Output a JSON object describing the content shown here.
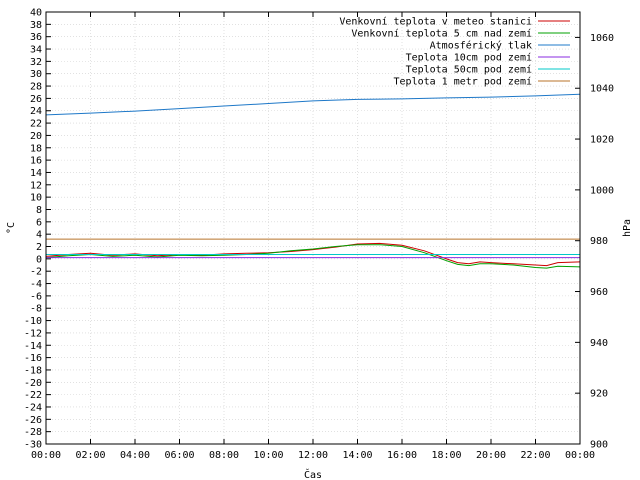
{
  "chart_data": {
    "type": "line",
    "title": "",
    "xlabel": "Čas",
    "ylabel_left": "°C",
    "ylabel_right": "hPa",
    "x_ticks": [
      "00:00",
      "02:00",
      "04:00",
      "06:00",
      "08:00",
      "10:00",
      "12:00",
      "14:00",
      "16:00",
      "18:00",
      "20:00",
      "22:00",
      "00:00"
    ],
    "xlim_hours": [
      0,
      24
    ],
    "ylim_left": [
      -30,
      40
    ],
    "ylim_right": [
      900,
      1070
    ],
    "y_ticks_left": [
      -30,
      -28,
      -26,
      -24,
      -22,
      -20,
      -18,
      -16,
      -14,
      -12,
      -10,
      -8,
      -6,
      -4,
      -2,
      0,
      2,
      4,
      6,
      8,
      10,
      12,
      14,
      16,
      18,
      20,
      22,
      24,
      26,
      28,
      30,
      32,
      34,
      36,
      38,
      40
    ],
    "y_ticks_right": [
      900,
      920,
      940,
      960,
      980,
      1000,
      1020,
      1040,
      1060
    ],
    "grid": true,
    "legend_position": "top-right",
    "series": [
      {
        "name": "Venkovní teplota v meteo stanici",
        "color": "#cc0000",
        "axis": "left",
        "points": [
          [
            0,
            0.4
          ],
          [
            1,
            0.7
          ],
          [
            2,
            0.9
          ],
          [
            3,
            0.6
          ],
          [
            4,
            0.8
          ],
          [
            5,
            0.5
          ],
          [
            6,
            0.7
          ],
          [
            7,
            0.6
          ],
          [
            8,
            0.8
          ],
          [
            9,
            0.9
          ],
          [
            10,
            1.0
          ],
          [
            11,
            1.2
          ],
          [
            12,
            1.5
          ],
          [
            13,
            1.9
          ],
          [
            14,
            2.4
          ],
          [
            15,
            2.5
          ],
          [
            16,
            2.2
          ],
          [
            17,
            1.3
          ],
          [
            18,
            0.0
          ],
          [
            18.5,
            -0.6
          ],
          [
            19,
            -0.8
          ],
          [
            19.5,
            -0.5
          ],
          [
            20,
            -0.6
          ],
          [
            21,
            -0.8
          ],
          [
            22,
            -1.0
          ],
          [
            22.5,
            -1.1
          ],
          [
            23,
            -0.6
          ],
          [
            24,
            -0.5
          ]
        ]
      },
      {
        "name": "Venkovní teplota 5 cm nad zemí",
        "color": "#00a000",
        "axis": "left",
        "points": [
          [
            0,
            0.2
          ],
          [
            1,
            0.5
          ],
          [
            2,
            0.7
          ],
          [
            3,
            0.4
          ],
          [
            4,
            0.6
          ],
          [
            5,
            0.3
          ],
          [
            6,
            0.6
          ],
          [
            7,
            0.5
          ],
          [
            8,
            0.6
          ],
          [
            9,
            0.7
          ],
          [
            10,
            0.9
          ],
          [
            11,
            1.3
          ],
          [
            12,
            1.6
          ],
          [
            13,
            2.0
          ],
          [
            14,
            2.3
          ],
          [
            15,
            2.3
          ],
          [
            16,
            2.0
          ],
          [
            17,
            1.0
          ],
          [
            18,
            -0.3
          ],
          [
            18.5,
            -0.9
          ],
          [
            19,
            -1.1
          ],
          [
            19.5,
            -0.8
          ],
          [
            20,
            -0.8
          ],
          [
            21,
            -1.0
          ],
          [
            22,
            -1.4
          ],
          [
            22.5,
            -1.5
          ],
          [
            23,
            -1.2
          ],
          [
            24,
            -1.3
          ]
        ]
      },
      {
        "name": "Atmosférický tlak",
        "color": "#1e78c8",
        "axis": "right",
        "points": [
          [
            0,
            1029.5
          ],
          [
            2,
            1030.2
          ],
          [
            4,
            1031.0
          ],
          [
            6,
            1032.0
          ],
          [
            8,
            1033.0
          ],
          [
            10,
            1034.0
          ],
          [
            12,
            1035.0
          ],
          [
            14,
            1035.6
          ],
          [
            16,
            1035.8
          ],
          [
            18,
            1036.2
          ],
          [
            20,
            1036.5
          ],
          [
            22,
            1037.0
          ],
          [
            24,
            1037.6
          ]
        ]
      },
      {
        "name": "Teplota 10cm pod zemí",
        "color": "#8a2be2",
        "axis": "left",
        "points": [
          [
            0,
            0.2
          ],
          [
            24,
            0.2
          ]
        ]
      },
      {
        "name": "Teplota 50cm pod zemí",
        "color": "#00c8c8",
        "axis": "left",
        "points": [
          [
            0,
            0.7
          ],
          [
            24,
            0.7
          ]
        ]
      },
      {
        "name": "Teplota 1 metr pod zemí",
        "color": "#b8732a",
        "axis": "left",
        "points": [
          [
            0,
            3.2
          ],
          [
            24,
            3.2
          ]
        ]
      }
    ]
  }
}
